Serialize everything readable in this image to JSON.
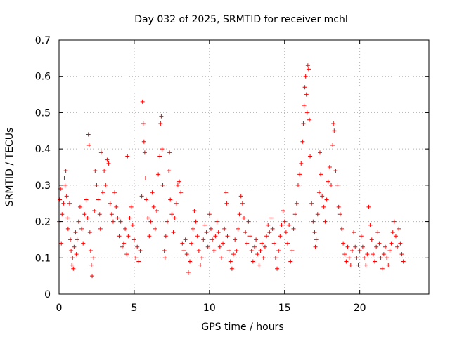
{
  "chart_data": {
    "type": "scatter",
    "title": "Day 032 of 2025, SRMTID for receiver mchl",
    "xlabel": "GPS time / hours",
    "ylabel": "SRMTID / TECUs",
    "xlim": [
      0,
      24.6
    ],
    "ylim": [
      0,
      0.7
    ],
    "xticks": [
      0,
      5,
      10,
      15,
      20
    ],
    "xtick_labels": [
      "0",
      "5",
      "10",
      "15",
      "20"
    ],
    "yticks": [
      0,
      0.1,
      0.2,
      0.3,
      0.4,
      0.5,
      0.6,
      0.7
    ],
    "ytick_labels": [
      "0",
      "0.1",
      "0.2",
      "0.3",
      "0.4",
      "0.5",
      "0.6",
      "0.7"
    ],
    "grid": true,
    "marker": "+",
    "series": [
      {
        "name": "SRMTID",
        "color": "#ff0000",
        "points": [
          [
            0.0,
            0.2
          ],
          [
            0.05,
            0.26
          ],
          [
            0.1,
            0.29
          ],
          [
            0.15,
            0.14
          ],
          [
            0.2,
            0.22
          ],
          [
            0.3,
            0.25
          ],
          [
            0.35,
            0.32
          ],
          [
            0.4,
            0.3
          ],
          [
            0.45,
            0.34
          ],
          [
            0.5,
            0.27
          ],
          [
            0.55,
            0.21
          ],
          [
            0.6,
            0.18
          ],
          [
            0.7,
            0.25
          ],
          [
            0.75,
            0.15
          ],
          [
            0.8,
            0.12
          ],
          [
            0.85,
            0.08
          ],
          [
            0.9,
            0.1
          ],
          [
            0.95,
            0.07
          ],
          [
            1.0,
            0.13
          ],
          [
            1.1,
            0.17
          ],
          [
            1.15,
            0.11
          ],
          [
            1.2,
            0.15
          ],
          [
            1.3,
            0.2
          ],
          [
            1.4,
            0.24
          ],
          [
            1.5,
            0.18
          ],
          [
            1.6,
            0.14
          ],
          [
            1.7,
            0.22
          ],
          [
            1.8,
            0.26
          ],
          [
            1.9,
            0.21
          ],
          [
            1.95,
            0.44
          ],
          [
            2.0,
            0.41
          ],
          [
            2.05,
            0.17
          ],
          [
            2.1,
            0.12
          ],
          [
            2.15,
            0.08
          ],
          [
            2.2,
            0.05
          ],
          [
            2.3,
            0.1
          ],
          [
            2.35,
            0.23
          ],
          [
            2.4,
            0.34
          ],
          [
            2.5,
            0.3
          ],
          [
            2.6,
            0.26
          ],
          [
            2.7,
            0.22
          ],
          [
            2.75,
            0.18
          ],
          [
            2.8,
            0.39
          ],
          [
            2.9,
            0.28
          ],
          [
            3.0,
            0.34
          ],
          [
            3.1,
            0.3
          ],
          [
            3.2,
            0.37
          ],
          [
            3.3,
            0.36
          ],
          [
            3.4,
            0.25
          ],
          [
            3.5,
            0.22
          ],
          [
            3.6,
            0.2
          ],
          [
            3.7,
            0.28
          ],
          [
            3.8,
            0.24
          ],
          [
            3.9,
            0.21
          ],
          [
            4.0,
            0.16
          ],
          [
            4.1,
            0.2
          ],
          [
            4.2,
            0.13
          ],
          [
            4.3,
            0.14
          ],
          [
            4.4,
            0.18
          ],
          [
            4.5,
            0.11
          ],
          [
            4.55,
            0.38
          ],
          [
            4.6,
            0.16
          ],
          [
            4.7,
            0.21
          ],
          [
            4.8,
            0.24
          ],
          [
            4.9,
            0.19
          ],
          [
            5.0,
            0.15
          ],
          [
            5.1,
            0.1
          ],
          [
            5.2,
            0.13
          ],
          [
            5.3,
            0.09
          ],
          [
            5.4,
            0.12
          ],
          [
            5.5,
            0.27
          ],
          [
            5.55,
            0.53
          ],
          [
            5.6,
            0.47
          ],
          [
            5.65,
            0.42
          ],
          [
            5.7,
            0.39
          ],
          [
            5.75,
            0.32
          ],
          [
            5.8,
            0.26
          ],
          [
            5.9,
            0.21
          ],
          [
            6.0,
            0.16
          ],
          [
            6.1,
            0.2
          ],
          [
            6.2,
            0.28
          ],
          [
            6.3,
            0.24
          ],
          [
            6.4,
            0.18
          ],
          [
            6.5,
            0.23
          ],
          [
            6.6,
            0.33
          ],
          [
            6.7,
            0.38
          ],
          [
            6.75,
            0.47
          ],
          [
            6.8,
            0.49
          ],
          [
            6.85,
            0.4
          ],
          [
            6.9,
            0.3
          ],
          [
            7.0,
            0.12
          ],
          [
            7.05,
            0.1
          ],
          [
            7.1,
            0.16
          ],
          [
            7.2,
            0.2
          ],
          [
            7.3,
            0.34
          ],
          [
            7.35,
            0.39
          ],
          [
            7.4,
            0.26
          ],
          [
            7.5,
            0.22
          ],
          [
            7.6,
            0.17
          ],
          [
            7.7,
            0.21
          ],
          [
            7.8,
            0.25
          ],
          [
            7.9,
            0.3
          ],
          [
            8.0,
            0.31
          ],
          [
            8.1,
            0.28
          ],
          [
            8.2,
            0.14
          ],
          [
            8.3,
            0.12
          ],
          [
            8.4,
            0.15
          ],
          [
            8.5,
            0.11
          ],
          [
            8.6,
            0.06
          ],
          [
            8.7,
            0.09
          ],
          [
            8.8,
            0.14
          ],
          [
            8.9,
            0.18
          ],
          [
            9.0,
            0.23
          ],
          [
            9.1,
            0.2
          ],
          [
            9.2,
            0.16
          ],
          [
            9.3,
            0.12
          ],
          [
            9.4,
            0.08
          ],
          [
            9.5,
            0.1
          ],
          [
            9.6,
            0.15
          ],
          [
            9.7,
            0.19
          ],
          [
            9.8,
            0.17
          ],
          [
            9.9,
            0.13
          ],
          [
            10.0,
            0.22
          ],
          [
            10.1,
            0.18
          ],
          [
            10.2,
            0.15
          ],
          [
            10.3,
            0.12
          ],
          [
            10.4,
            0.16
          ],
          [
            10.5,
            0.2
          ],
          [
            10.6,
            0.17
          ],
          [
            10.7,
            0.13
          ],
          [
            10.8,
            0.1
          ],
          [
            10.9,
            0.14
          ],
          [
            11.0,
            0.18
          ],
          [
            11.1,
            0.28
          ],
          [
            11.15,
            0.25
          ],
          [
            11.2,
            0.16
          ],
          [
            11.3,
            0.12
          ],
          [
            11.4,
            0.09
          ],
          [
            11.5,
            0.07
          ],
          [
            11.6,
            0.11
          ],
          [
            11.7,
            0.15
          ],
          [
            11.8,
            0.12
          ],
          [
            11.9,
            0.18
          ],
          [
            12.0,
            0.22
          ],
          [
            12.1,
            0.27
          ],
          [
            12.2,
            0.25
          ],
          [
            12.3,
            0.21
          ],
          [
            12.4,
            0.17
          ],
          [
            12.5,
            0.14
          ],
          [
            12.6,
            0.2
          ],
          [
            12.7,
            0.16
          ],
          [
            12.8,
            0.12
          ],
          [
            12.9,
            0.09
          ],
          [
            13.0,
            0.13
          ],
          [
            13.1,
            0.15
          ],
          [
            13.2,
            0.11
          ],
          [
            13.3,
            0.08
          ],
          [
            13.4,
            0.12
          ],
          [
            13.5,
            0.14
          ],
          [
            13.6,
            0.1
          ],
          [
            13.7,
            0.13
          ],
          [
            13.8,
            0.16
          ],
          [
            13.9,
            0.19
          ],
          [
            14.0,
            0.17
          ],
          [
            14.1,
            0.21
          ],
          [
            14.2,
            0.18
          ],
          [
            14.3,
            0.14
          ],
          [
            14.4,
            0.1
          ],
          [
            14.5,
            0.07
          ],
          [
            14.6,
            0.12
          ],
          [
            14.7,
            0.16
          ],
          [
            14.8,
            0.19
          ],
          [
            14.9,
            0.23
          ],
          [
            15.0,
            0.2
          ],
          [
            15.1,
            0.17
          ],
          [
            15.2,
            0.14
          ],
          [
            15.3,
            0.19
          ],
          [
            15.4,
            0.09
          ],
          [
            15.5,
            0.12
          ],
          [
            15.6,
            0.18
          ],
          [
            15.7,
            0.22
          ],
          [
            15.8,
            0.25
          ],
          [
            15.9,
            0.3
          ],
          [
            16.0,
            0.33
          ],
          [
            16.1,
            0.36
          ],
          [
            16.2,
            0.42
          ],
          [
            16.25,
            0.47
          ],
          [
            16.3,
            0.52
          ],
          [
            16.35,
            0.57
          ],
          [
            16.4,
            0.6
          ],
          [
            16.45,
            0.55
          ],
          [
            16.5,
            0.5
          ],
          [
            16.55,
            0.63
          ],
          [
            16.6,
            0.62
          ],
          [
            16.65,
            0.48
          ],
          [
            16.7,
            0.38
          ],
          [
            16.8,
            0.25
          ],
          [
            16.9,
            0.2
          ],
          [
            17.0,
            0.17
          ],
          [
            17.05,
            0.13
          ],
          [
            17.1,
            0.15
          ],
          [
            17.2,
            0.22
          ],
          [
            17.3,
            0.28
          ],
          [
            17.35,
            0.39
          ],
          [
            17.4,
            0.33
          ],
          [
            17.5,
            0.27
          ],
          [
            17.6,
            0.24
          ],
          [
            17.7,
            0.2
          ],
          [
            17.8,
            0.26
          ],
          [
            17.9,
            0.31
          ],
          [
            18.0,
            0.35
          ],
          [
            18.1,
            0.3
          ],
          [
            18.2,
            0.41
          ],
          [
            18.25,
            0.47
          ],
          [
            18.3,
            0.45
          ],
          [
            18.4,
            0.34
          ],
          [
            18.5,
            0.3
          ],
          [
            18.6,
            0.24
          ],
          [
            18.7,
            0.22
          ],
          [
            18.8,
            0.18
          ],
          [
            18.9,
            0.14
          ],
          [
            19.0,
            0.11
          ],
          [
            19.1,
            0.09
          ],
          [
            19.2,
            0.13
          ],
          [
            19.3,
            0.1
          ],
          [
            19.4,
            0.08
          ],
          [
            19.5,
            0.12
          ],
          [
            19.6,
            0.17
          ],
          [
            19.7,
            0.13
          ],
          [
            19.8,
            0.1
          ],
          [
            19.9,
            0.08
          ],
          [
            20.0,
            0.12
          ],
          [
            20.1,
            0.16
          ],
          [
            20.2,
            0.13
          ],
          [
            20.3,
            0.1
          ],
          [
            20.4,
            0.08
          ],
          [
            20.5,
            0.11
          ],
          [
            20.6,
            0.24
          ],
          [
            20.7,
            0.19
          ],
          [
            20.8,
            0.15
          ],
          [
            20.9,
            0.11
          ],
          [
            21.0,
            0.09
          ],
          [
            21.1,
            0.13
          ],
          [
            21.2,
            0.17
          ],
          [
            21.3,
            0.14
          ],
          [
            21.4,
            0.1
          ],
          [
            21.5,
            0.07
          ],
          [
            21.6,
            0.11
          ],
          [
            21.7,
            0.13
          ],
          [
            21.8,
            0.1
          ],
          [
            21.9,
            0.08
          ],
          [
            22.0,
            0.12
          ],
          [
            22.1,
            0.14
          ],
          [
            22.2,
            0.17
          ],
          [
            22.3,
            0.2
          ],
          [
            22.4,
            0.16
          ],
          [
            22.5,
            0.13
          ],
          [
            22.6,
            0.18
          ],
          [
            22.7,
            0.14
          ],
          [
            22.8,
            0.11
          ],
          [
            22.9,
            0.09
          ]
        ]
      }
    ]
  }
}
